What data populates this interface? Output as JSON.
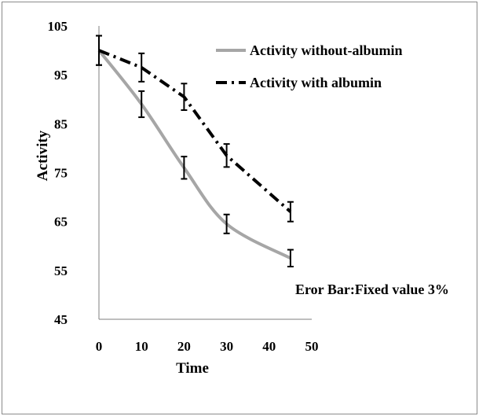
{
  "chart_data": {
    "type": "line",
    "title": "",
    "xlabel": "Time",
    "ylabel": "Activity",
    "xlim": [
      0,
      50
    ],
    "ylim": [
      45,
      105
    ],
    "xticks": [
      0,
      10,
      20,
      30,
      40,
      50
    ],
    "yticks": [
      45,
      55,
      65,
      75,
      85,
      95,
      105
    ],
    "x": [
      0,
      10,
      20,
      30,
      45
    ],
    "series": [
      {
        "name": "Activity without-albumin",
        "values": [
          100,
          89,
          76,
          64.5,
          57.5
        ],
        "color": "#a6a6a6",
        "style": "solid",
        "smooth": true
      },
      {
        "name": "Activity with albumin",
        "values": [
          100,
          96.5,
          90.5,
          78.5,
          67
        ],
        "color": "#000000",
        "style": "dash-dot",
        "smooth": false
      }
    ],
    "error_bar_percent": 3,
    "legend": "top-right",
    "grid": false,
    "note": "Eror Bar:Fixed value  3%"
  }
}
